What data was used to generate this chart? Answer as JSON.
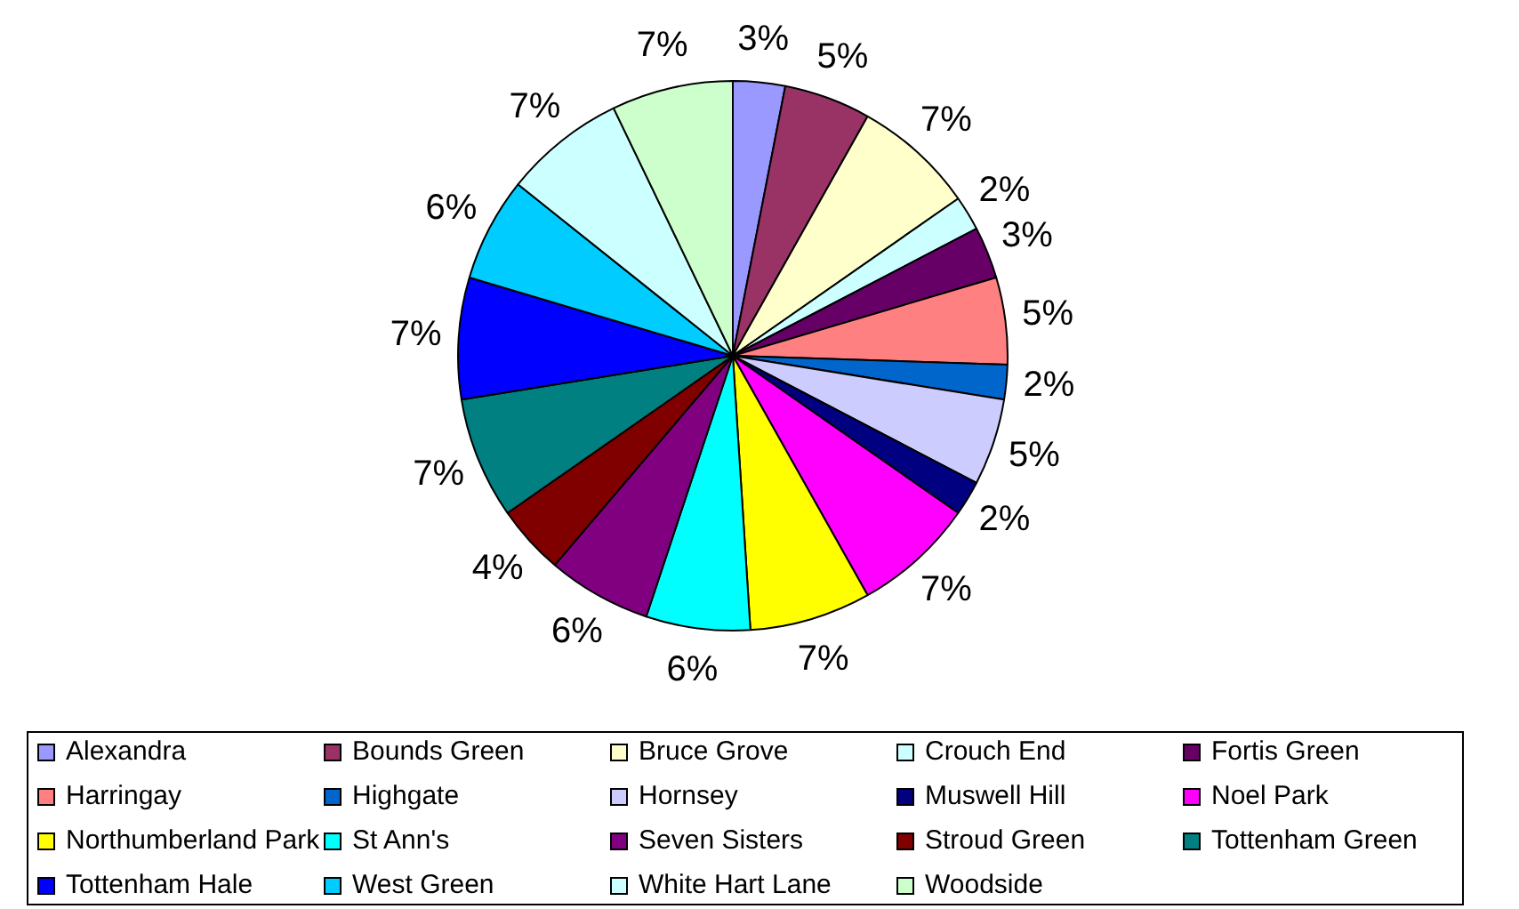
{
  "chart_data": {
    "type": "pie",
    "categories": [
      "Alexandra",
      "Bounds Green",
      "Bruce Grove",
      "Crouch End",
      "Fortis Green",
      "Harringay",
      "Highgate",
      "Hornsey",
      "Muswell Hill",
      "Noel Park",
      "Northumberland Park",
      "St Ann's",
      "Seven Sisters",
      "Stroud Green",
      "Tottenham Green",
      "Tottenham Hale",
      "West Green",
      "White Hart Lane",
      "Woodside"
    ],
    "values": [
      3,
      5,
      7,
      2,
      3,
      5,
      2,
      5,
      2,
      7,
      7,
      6,
      6,
      4,
      7,
      7,
      6,
      7,
      7
    ],
    "colors": [
      "#9999ff",
      "#993366",
      "#ffffcc",
      "#ccffff",
      "#660066",
      "#ff8080",
      "#0066cc",
      "#ccccff",
      "#000080",
      "#ff00ff",
      "#ffff00",
      "#00ffff",
      "#800080",
      "#800000",
      "#008080",
      "#0000ff",
      "#00ccff",
      "#ccffff",
      "#ccffcc"
    ],
    "value_labels": [
      "3%",
      "5%",
      "7%",
      "2%",
      "3%",
      "5%",
      "2%",
      "5%",
      "2%",
      "7%",
      "7%",
      "6%",
      "6%",
      "4%",
      "7%",
      "7%",
      "6%",
      "7%",
      "7%"
    ],
    "legend": "bottom"
  }
}
